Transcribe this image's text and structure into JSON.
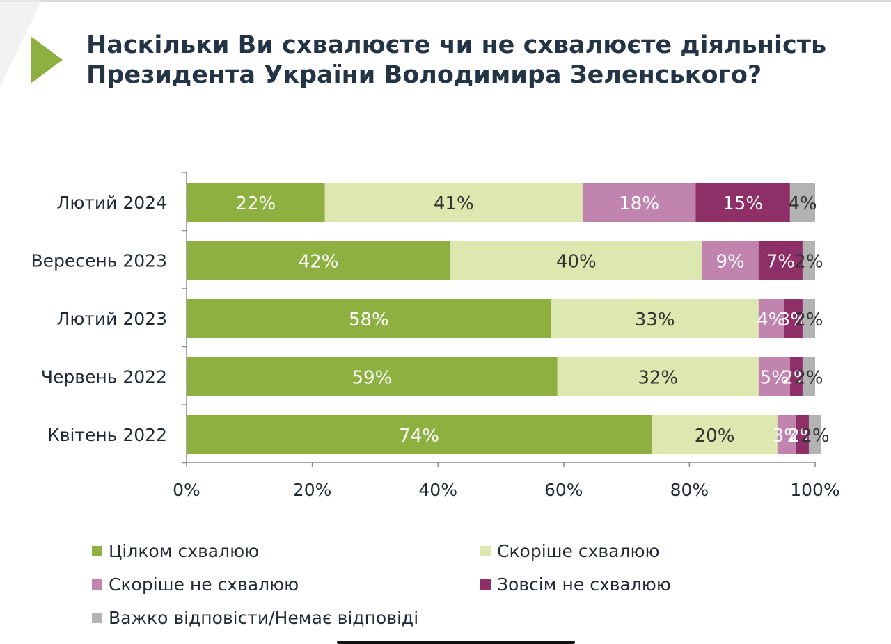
{
  "title": "Наскільки Ви схвалюєте чи не схвалюєте діяльність Президента України Володимира Зеленського?",
  "chart_data": {
    "type": "bar",
    "orientation": "horizontal",
    "stacked": true,
    "categories": [
      "Лютий 2024",
      "Вересень 2023",
      "Лютий 2023",
      "Червень 2022",
      "Квітень 2022"
    ],
    "series": [
      {
        "name": "Цілком схвалюю",
        "color": "#8db040",
        "label_color": "#ffffff",
        "values": [
          22,
          42,
          58,
          59,
          74
        ]
      },
      {
        "name": "Скоріше схвалюю",
        "color": "#dce8b0",
        "label_color": "#333333",
        "values": [
          41,
          40,
          33,
          32,
          20
        ]
      },
      {
        "name": "Скоріше не схвалюю",
        "color": "#c084ae",
        "label_color": "#ffffff",
        "values": [
          18,
          9,
          4,
          5,
          3
        ]
      },
      {
        "name": "Зовсім не схвалюю",
        "color": "#8e2f68",
        "label_color": "#ffffff",
        "values": [
          15,
          7,
          3,
          2,
          2
        ]
      },
      {
        "name": "Важко відповісти/Немає відповіді",
        "color": "#b3b3b3",
        "label_color": "#333333",
        "values": [
          4,
          2,
          2,
          2,
          2
        ]
      }
    ],
    "x_ticks": [
      "0%",
      "20%",
      "40%",
      "60%",
      "80%",
      "100%"
    ],
    "xlim": [
      0,
      100
    ],
    "grid": false,
    "legend_position": "bottom"
  }
}
